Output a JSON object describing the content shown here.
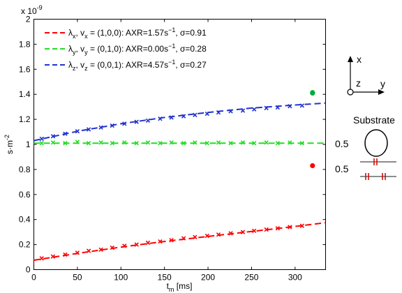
{
  "chart_data": {
    "type": "scatter",
    "xlabel": "t",
    "xlabel_sub": "m",
    "xlabel_unit": " [ms]",
    "ylabel": "s·m",
    "ylabel_sup": "-2",
    "y_exponent_base": "x 10",
    "y_exponent_power": "-9",
    "xlim": [
      0,
      335
    ],
    "ylim": [
      0,
      2
    ],
    "x_ticks": [
      0,
      50,
      100,
      150,
      200,
      250,
      300
    ],
    "x_tick_labels": [
      "0",
      "50",
      "100",
      "150",
      "200",
      "250",
      "300"
    ],
    "y_ticks": [
      0,
      0.2,
      0.4,
      0.6,
      0.8,
      1,
      1.2,
      1.4,
      1.6,
      1.8,
      2
    ],
    "y_tick_labels": [
      "0",
      "0.2",
      "0.4",
      "0.6",
      "0.8",
      "1",
      "1.2",
      "1.4",
      "1.6",
      "1.8",
      "2"
    ],
    "grid": false,
    "legend_position": "top-left",
    "series": [
      {
        "name": "λx, vx = (1,0,0): AXR=1.57s-1, σ=0.91",
        "legend": {
          "lam": "λ",
          "lam_sub": "x",
          "v": ", v",
          "v_sub": "x",
          "rest": " = (1,0,0): AXR=1.57s",
          "sup": "−1",
          "sigma": ", σ=0.91"
        },
        "color": "#ff0000",
        "fit": {
          "x": [
            0,
            50,
            100,
            150,
            200,
            250,
            300,
            335
          ],
          "y": [
            0.075,
            0.13,
            0.18,
            0.225,
            0.265,
            0.305,
            0.345,
            0.375
          ]
        },
        "markers": {
          "x": [
            9,
            22,
            36,
            50,
            63,
            77,
            90,
            104,
            118,
            131,
            145,
            158,
            172,
            185,
            199,
            212,
            226,
            240,
            253,
            267,
            280,
            294,
            308
          ],
          "y": [
            0.09,
            0.105,
            0.12,
            0.135,
            0.15,
            0.16,
            0.175,
            0.19,
            0.2,
            0.215,
            0.225,
            0.235,
            0.25,
            0.26,
            0.27,
            0.28,
            0.29,
            0.3,
            0.31,
            0.32,
            0.33,
            0.34,
            0.35
          ]
        },
        "dot": {
          "x": 320,
          "y": 0.83
        }
      },
      {
        "name": "λy, vy = (0,1,0): AXR=0.00s-1, σ=0.28",
        "legend": {
          "lam": "λ",
          "lam_sub": "y",
          "v": ", v",
          "v_sub": "y",
          "rest": " = (0,1,0): AXR=0.00s",
          "sup": "−1",
          "sigma": ", σ=0.28"
        },
        "color": "#22dd22",
        "fit": {
          "x": [
            0,
            335
          ],
          "y": [
            1.01,
            1.01
          ]
        },
        "markers": {
          "x": [
            9,
            22,
            36,
            50,
            63,
            77,
            90,
            104,
            118,
            131,
            145,
            158,
            172,
            185,
            199,
            212,
            226,
            240,
            253,
            267,
            280,
            294,
            308
          ],
          "y": [
            1.01,
            1.015,
            1.01,
            1.02,
            1.01,
            1.015,
            1.01,
            1.015,
            1.01,
            1.015,
            1.01,
            1.015,
            1.01,
            1.015,
            1.01,
            1.015,
            1.01,
            1.015,
            1.01,
            1.015,
            1.01,
            1.015,
            1.01
          ]
        },
        "dot": {
          "x": 320,
          "y": 1.415
        }
      },
      {
        "name": "λz, vz = (0,0,1): AXR=4.57s-1, σ=0.27",
        "legend": {
          "lam": "λ",
          "lam_sub": "z",
          "v": ", v",
          "v_sub": "z",
          "rest": " = (0,0,1): AXR=4.57s",
          "sup": "−1",
          "sigma": ", σ=0.27"
        },
        "color": "#2233cc",
        "fit": {
          "x": [
            0,
            50,
            100,
            150,
            200,
            250,
            300,
            335
          ],
          "y": [
            1.03,
            1.105,
            1.165,
            1.215,
            1.255,
            1.29,
            1.315,
            1.33
          ]
        },
        "markers": {
          "x": [
            9,
            22,
            36,
            50,
            63,
            77,
            90,
            104,
            118,
            131,
            145,
            158,
            172,
            185,
            199,
            212,
            226,
            240,
            253,
            267,
            280,
            294,
            308
          ],
          "y": [
            1.045,
            1.065,
            1.085,
            1.105,
            1.12,
            1.135,
            1.15,
            1.165,
            1.18,
            1.19,
            1.205,
            1.215,
            1.225,
            1.235,
            1.245,
            1.255,
            1.265,
            1.27,
            1.28,
            1.29,
            1.295,
            1.305,
            1.31
          ]
        },
        "dot": {
          "x": 320,
          "y": 1.41,
          "color": "#00aa44"
        }
      }
    ]
  },
  "side_panel": {
    "axis_x": "x",
    "axis_y": "y",
    "axis_z": "z",
    "substrate_title": "Substrate",
    "label_1": "0.5",
    "label_2": "0.5",
    "circle_color": "#000000",
    "line_color": "#666666",
    "tick_color": "#cc0000"
  }
}
